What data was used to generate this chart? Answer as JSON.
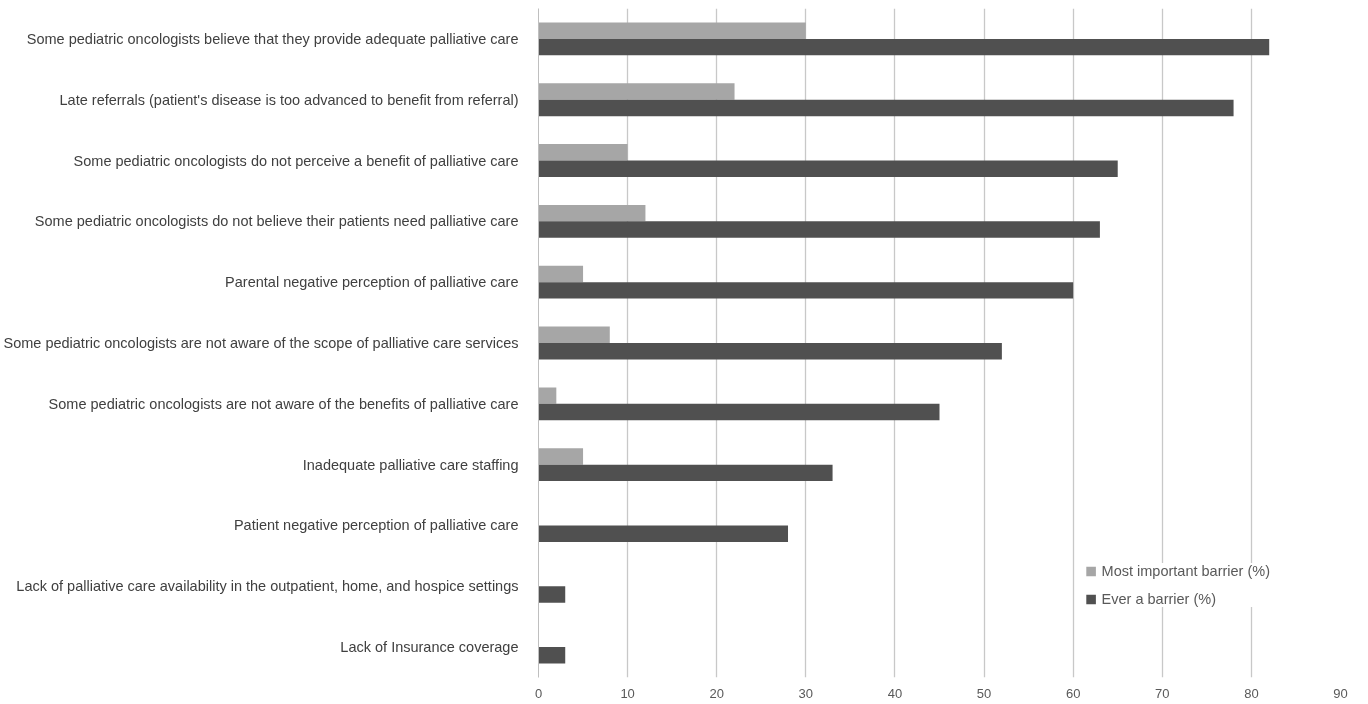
{
  "chart_data": {
    "type": "bar",
    "orientation": "horizontal",
    "categories": [
      "Some pediatric oncologists believe that they provide adequate palliative care",
      "Late referrals (patient's disease is too advanced to benefit from referral)",
      "Some pediatric oncologists do not perceive a benefit of palliative care",
      "Some pediatric oncologists do not believe their patients need palliative care",
      "Parental negative perception of palliative care",
      "Some pediatric oncologists are not aware of the scope of palliative care services",
      "Some pediatric oncologists are not aware of the benefits of palliative care",
      "Inadequate palliative care staffing",
      "Patient negative perception of palliative care",
      "Lack of palliative care availability in the outpatient, home, and hospice settings",
      "Lack of Insurance coverage"
    ],
    "series": [
      {
        "name": "Most important barrier (%)",
        "color": "#a6a6a6",
        "values": [
          30,
          22,
          10,
          12,
          5,
          8,
          2,
          5,
          0,
          0,
          0
        ]
      },
      {
        "name": "Ever a barrier (%)",
        "color": "#505050",
        "values": [
          82,
          78,
          65,
          63,
          60,
          52,
          45,
          33,
          28,
          3,
          3
        ]
      }
    ],
    "xlim": [
      0,
      90
    ],
    "xticks": [
      0,
      10,
      20,
      30,
      40,
      50,
      60,
      70,
      80,
      90
    ],
    "grid": "x",
    "legend": "bottom right"
  }
}
